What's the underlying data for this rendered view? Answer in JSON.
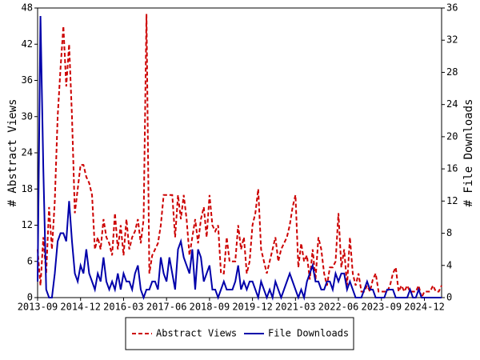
{
  "chart_data": {
    "type": "line",
    "ylabel": "# Abstract Views",
    "y2label": "# File Downloads",
    "x": [
      "2013-09",
      "2013-10",
      "2013-11",
      "2013-12",
      "2014-01",
      "2014-02",
      "2014-03",
      "2014-04",
      "2014-05",
      "2014-06",
      "2014-07",
      "2014-08",
      "2014-09",
      "2014-10",
      "2014-11",
      "2014-12",
      "2015-01",
      "2015-02",
      "2015-03",
      "2015-04",
      "2015-05",
      "2015-06",
      "2015-07",
      "2015-08",
      "2015-09",
      "2015-10",
      "2015-11",
      "2015-12",
      "2016-01",
      "2016-02",
      "2016-03",
      "2016-04",
      "2016-05",
      "2016-06",
      "2016-07",
      "2016-08",
      "2016-09",
      "2016-10",
      "2016-11",
      "2016-12",
      "2017-01",
      "2017-02",
      "2017-03",
      "2017-04",
      "2017-05",
      "2017-06",
      "2017-07",
      "2017-08",
      "2017-09",
      "2017-10",
      "2017-11",
      "2017-12",
      "2018-01",
      "2018-02",
      "2018-03",
      "2018-04",
      "2018-05",
      "2018-06",
      "2018-07",
      "2018-08",
      "2018-09",
      "2018-10",
      "2018-11",
      "2018-12",
      "2019-01",
      "2019-02",
      "2019-03",
      "2019-04",
      "2019-05",
      "2019-06",
      "2019-07",
      "2019-08",
      "2019-09",
      "2019-10",
      "2019-11",
      "2019-12",
      "2020-01",
      "2020-02",
      "2020-03",
      "2020-04",
      "2020-05",
      "2020-06",
      "2020-07",
      "2020-08",
      "2020-09",
      "2020-10",
      "2020-11",
      "2020-12",
      "2021-01",
      "2021-02",
      "2021-03",
      "2021-04",
      "2021-05",
      "2021-06",
      "2021-07",
      "2021-08",
      "2021-09",
      "2021-10",
      "2021-11",
      "2021-12",
      "2022-01",
      "2022-02",
      "2022-03",
      "2022-04",
      "2022-05",
      "2022-06",
      "2022-07",
      "2022-08",
      "2022-09",
      "2022-10",
      "2022-11",
      "2022-12",
      "2023-01",
      "2023-02",
      "2023-03",
      "2023-04",
      "2023-05",
      "2023-06",
      "2023-07",
      "2023-08",
      "2023-09",
      "2023-10",
      "2023-11",
      "2023-12",
      "2024-01",
      "2024-02",
      "2024-03",
      "2024-04",
      "2024-05",
      "2024-06",
      "2024-07",
      "2024-08",
      "2024-09",
      "2024-10",
      "2024-11",
      "2024-12",
      "2025-01",
      "2025-02",
      "2025-03",
      "2025-04",
      "2025-05",
      "2025-06"
    ],
    "xticks": [
      "2013-09",
      "2014-12",
      "2016-03",
      "2017-06",
      "2018-09",
      "2019-12",
      "2021-03",
      "2022-06",
      "2023-09",
      "2024-12"
    ],
    "ylim": [
      0,
      48
    ],
    "yticks": [
      0,
      6,
      12,
      18,
      24,
      30,
      36,
      42,
      48
    ],
    "y2lim": [
      0,
      36
    ],
    "y2ticks": [
      0,
      4,
      8,
      12,
      16,
      20,
      24,
      28,
      32,
      36
    ],
    "legend": "below",
    "series": [
      {
        "name": "Abstract Views",
        "color": "#cc0000",
        "style": "dashed",
        "values": [
          8,
          2,
          10,
          4,
          15,
          8,
          16,
          30,
          38,
          45,
          35,
          42,
          30,
          14,
          18,
          22,
          22,
          20,
          19,
          17,
          8,
          10,
          8,
          13,
          10,
          9,
          7,
          14,
          8,
          12,
          7,
          13,
          8,
          10,
          11,
          13,
          9,
          13,
          47,
          4,
          7,
          8,
          9,
          12,
          17,
          17,
          17,
          17,
          10,
          17,
          13,
          17,
          13,
          7,
          10,
          13,
          9,
          13,
          15,
          10,
          17,
          12,
          11,
          12,
          4,
          4,
          10,
          6,
          6,
          6,
          12,
          8,
          10,
          4,
          6,
          12,
          14,
          18,
          8,
          6,
          4,
          6,
          8,
          10,
          6,
          8,
          9,
          10,
          12,
          15,
          17,
          5,
          9,
          6,
          7,
          3,
          8,
          3,
          10,
          8,
          4,
          2,
          5,
          5,
          6,
          14,
          5,
          8,
          2,
          10,
          4,
          2,
          4,
          1,
          1,
          2,
          1,
          3,
          4,
          1,
          1,
          1,
          1,
          2,
          4,
          5,
          1,
          2,
          1,
          2,
          1,
          1,
          1,
          2,
          0,
          1,
          1,
          1,
          2,
          1,
          1,
          2
        ]
      },
      {
        "name": "File Downloads",
        "color": "#0000aa",
        "style": "solid",
        "axis": "y2",
        "values": [
          2,
          35,
          16,
          1,
          0,
          0,
          3,
          7,
          8,
          8,
          7,
          12,
          7,
          3,
          2,
          4,
          3,
          6,
          3,
          2,
          1,
          3,
          2,
          5,
          2,
          1,
          2,
          1,
          3,
          1,
          3,
          2,
          2,
          1,
          3,
          4,
          1,
          0,
          1,
          1,
          2,
          2,
          1,
          5,
          3,
          2,
          5,
          3,
          1,
          6,
          7,
          5,
          4,
          3,
          6,
          1,
          6,
          5,
          2,
          3,
          4,
          1,
          1,
          0,
          1,
          2,
          1,
          1,
          1,
          2,
          4,
          1,
          2,
          1,
          2,
          2,
          1,
          0,
          2,
          1,
          0,
          1,
          0,
          2,
          1,
          0,
          1,
          2,
          3,
          2,
          1,
          0,
          1,
          0,
          2,
          3,
          4,
          2,
          2,
          1,
          1,
          2,
          2,
          1,
          3,
          2,
          3,
          3,
          1,
          2,
          1,
          0,
          0,
          0,
          1,
          2,
          1,
          1,
          0,
          0,
          0,
          0,
          1,
          1,
          1,
          0,
          0,
          0,
          0,
          0,
          1,
          0,
          0,
          1,
          0,
          0,
          0,
          0,
          0,
          0,
          0,
          0
        ]
      }
    ]
  }
}
